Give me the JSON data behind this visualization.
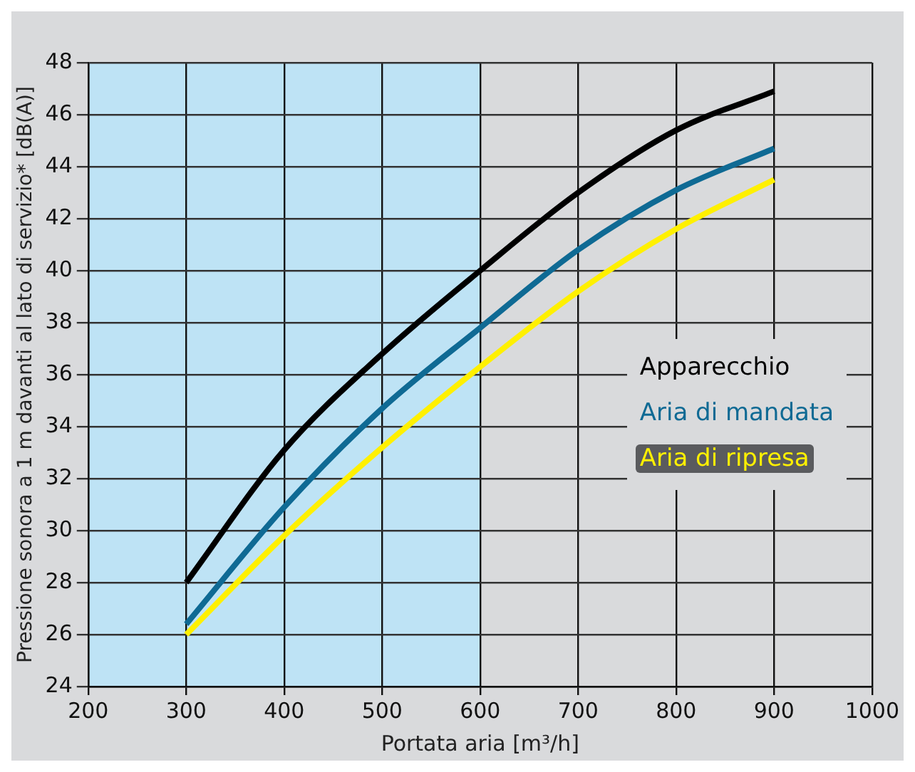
{
  "chart_data": {
    "type": "line",
    "xlabel": "Portata aria [m³/h]",
    "ylabel": "Pressione sonora a 1 m davanti al lato di servizio* [dB(A)]",
    "x": [
      300,
      400,
      500,
      600,
      700,
      800,
      900
    ],
    "series": [
      {
        "name": "Apparecchio",
        "color": "#000000",
        "values": [
          28.0,
          33.1,
          36.8,
          40.0,
          43.0,
          45.4,
          46.9
        ]
      },
      {
        "name": "Aria di mandata",
        "color": "#0f6a94",
        "values": [
          26.4,
          30.9,
          34.7,
          37.8,
          40.8,
          43.1,
          44.7
        ]
      },
      {
        "name": "Aria di ripresa",
        "color": "#fff000",
        "values": [
          26.0,
          29.8,
          33.2,
          36.3,
          39.2,
          41.6,
          43.5
        ]
      }
    ],
    "xlim": [
      200,
      1000
    ],
    "xticks": [
      200,
      300,
      400,
      500,
      600,
      700,
      800,
      900,
      1000
    ],
    "ylim": [
      24,
      48
    ],
    "yticks": [
      24,
      26,
      28,
      30,
      32,
      34,
      36,
      38,
      40,
      42,
      44,
      46,
      48
    ],
    "bands": [
      {
        "axis": "x",
        "from": 200,
        "to": 600,
        "color": "#bee3f5"
      }
    ],
    "grid": true,
    "legend": "right",
    "marker": "none",
    "line_style": "solid"
  }
}
